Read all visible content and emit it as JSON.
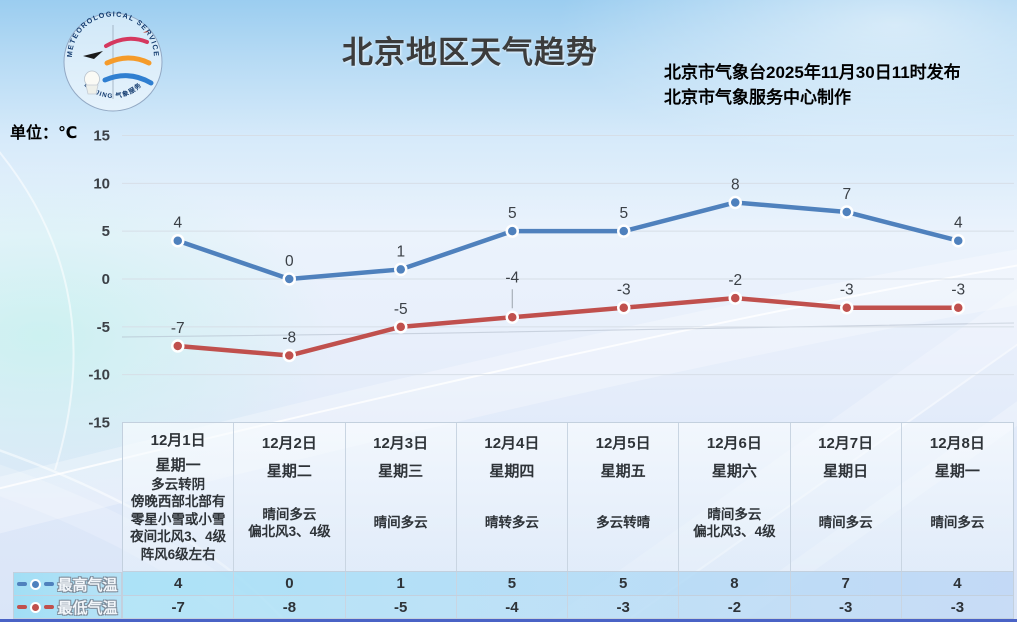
{
  "header": {
    "title": "北京地区天气趋势",
    "issued_line1": "北京市气象台2025年11月30日11时发布",
    "issued_line2": "北京市气象服务中心制作",
    "unit_label": "单位：℃"
  },
  "logo": {
    "top_text": "METEOROLOGICAL SERVICE",
    "bottom_text": "BEIJING 气象服务"
  },
  "chart_data": {
    "type": "line",
    "title": "北京地区天气趋势",
    "unit": "℃",
    "categories": [
      "12月1日",
      "12月2日",
      "12月3日",
      "12月4日",
      "12月5日",
      "12月6日",
      "12月7日",
      "12月8日"
    ],
    "weekdays": [
      "星期一",
      "星期二",
      "星期三",
      "星期四",
      "星期五",
      "星期六",
      "星期日",
      "星期一"
    ],
    "weather": [
      "多云转阴\n傍晚西部北部有\n零星小雪或小雪\n夜间北风3、4级\n阵风6级左右",
      "晴间多云\n偏北风3、4级",
      "晴间多云",
      "晴转多云",
      "多云转晴",
      "晴间多云\n偏北风3、4级",
      "晴间多云",
      "晴间多云"
    ],
    "series": [
      {
        "name": "最高气温",
        "color": "#4F81BD",
        "values": [
          4,
          0,
          1,
          5,
          5,
          8,
          7,
          4
        ]
      },
      {
        "name": "最低气温",
        "color": "#C0504D",
        "values": [
          -7,
          -8,
          -5,
          -4,
          -3,
          -2,
          -3,
          -3
        ]
      }
    ],
    "ylim": [
      -15,
      15
    ],
    "yticks": [
      15,
      10,
      5,
      0,
      -5,
      -10,
      -15
    ],
    "grid": true,
    "legend_position": "bottom-left-table"
  }
}
